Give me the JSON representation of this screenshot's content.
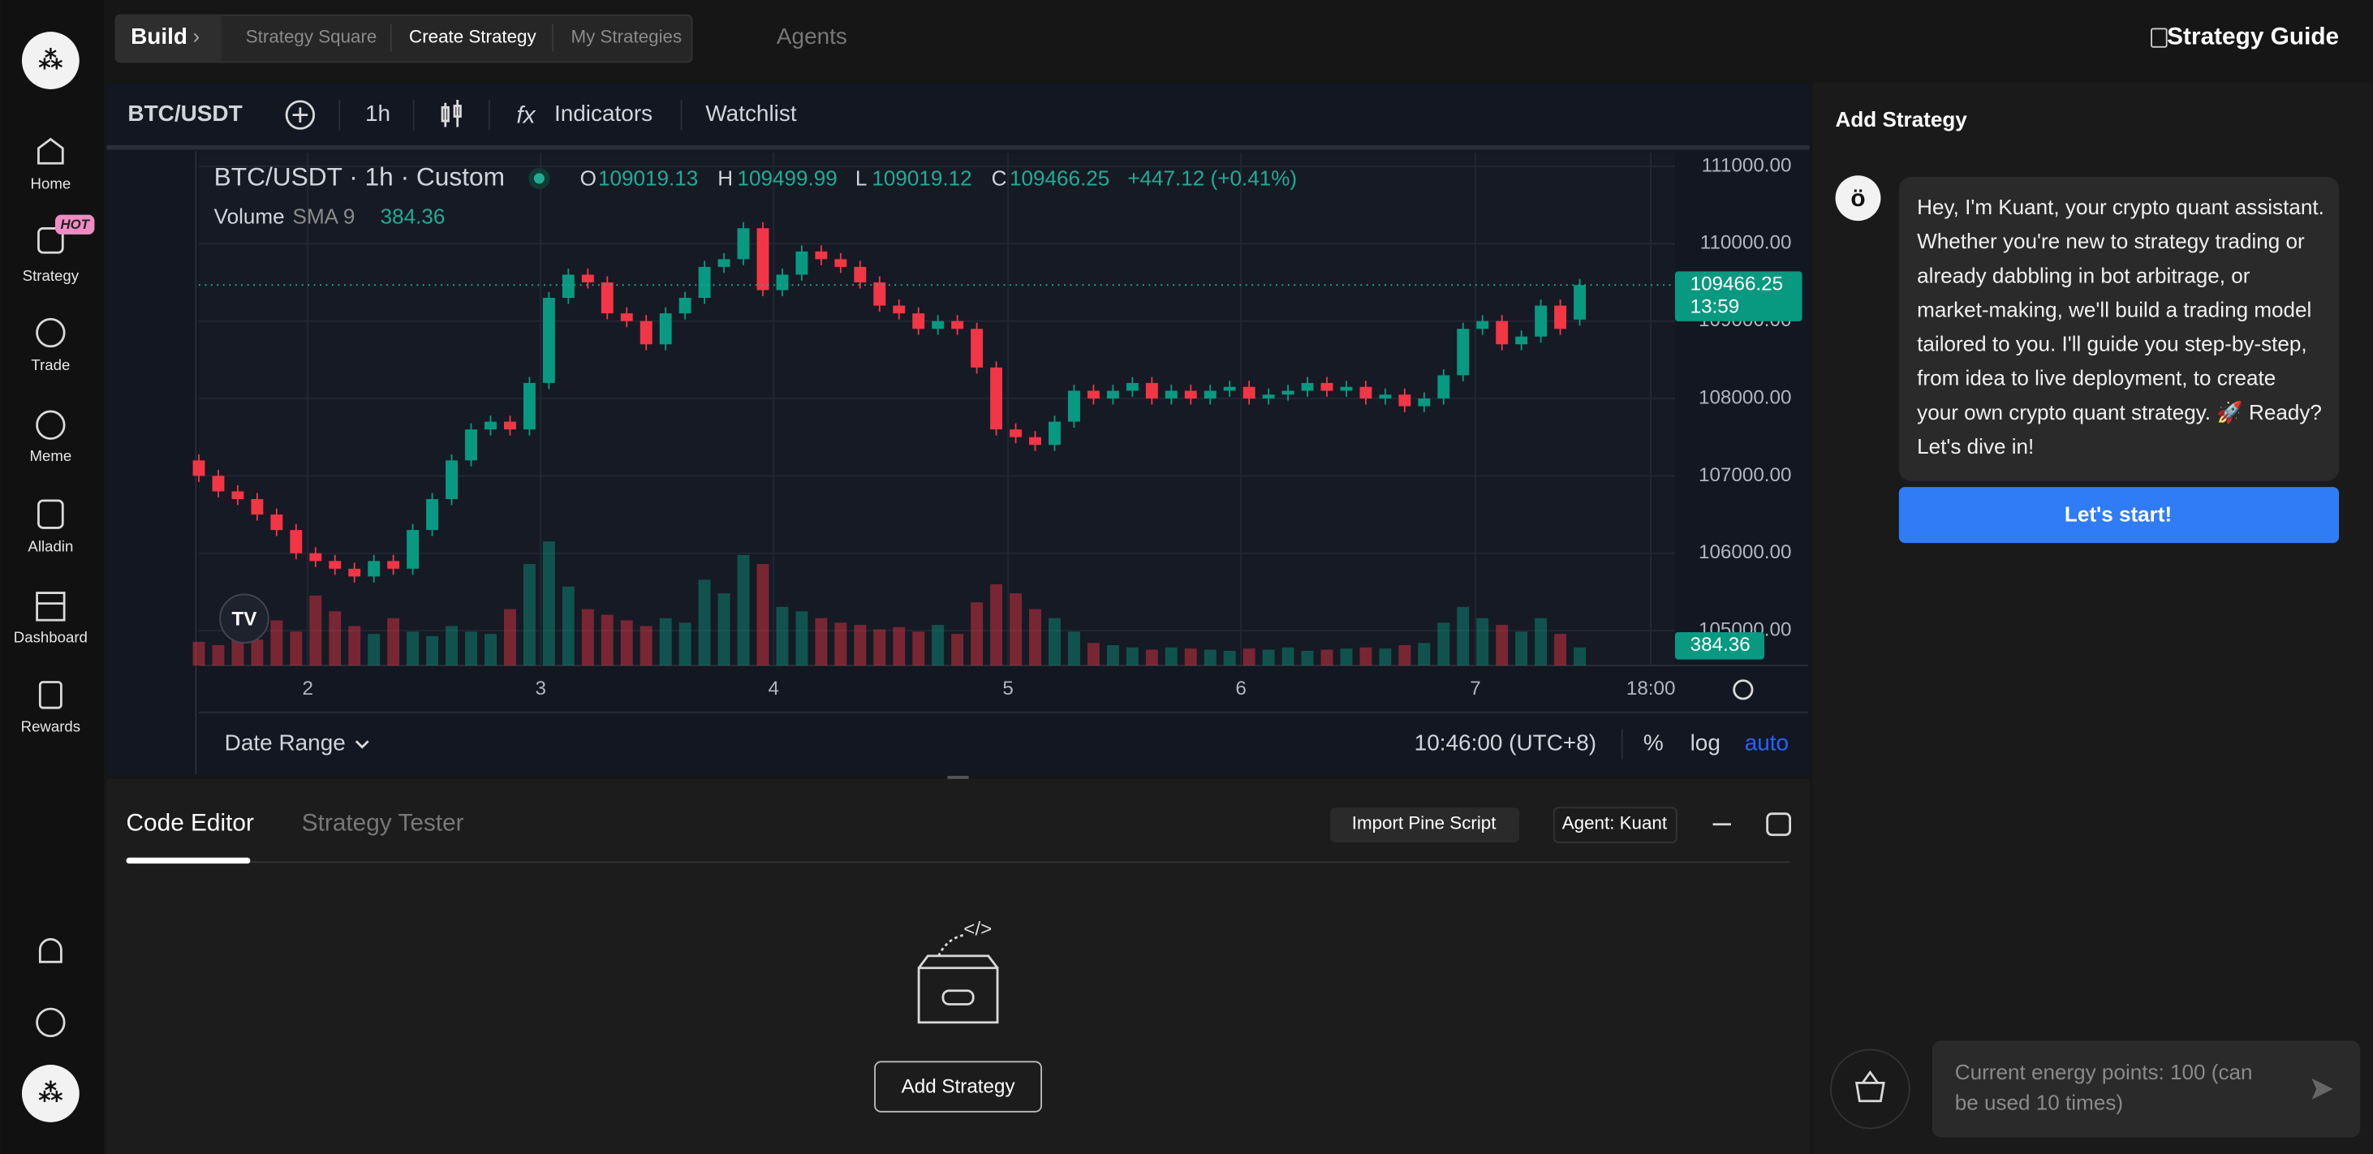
{
  "sidebar": {
    "nav": [
      "Home",
      "Strategy",
      "Trade",
      "Meme",
      "Alladin",
      "Dashboard",
      "Rewards"
    ],
    "badge": "HOT"
  },
  "topbar": {
    "build": "Build",
    "tabs": [
      "Strategy Square",
      "Create Strategy",
      "My Strategies"
    ],
    "agents": "Agents",
    "guide": "Strategy Guide"
  },
  "toolbar": {
    "symbol": "BTC/USDT",
    "interval": "1h",
    "indicators": "Indicators",
    "watchlist": "Watchlist"
  },
  "chart_data": {
    "type": "candlestick",
    "title": "BTC/USDT · 1h · Custom",
    "ohlc_labels": [
      "O",
      "H",
      "L",
      "C"
    ],
    "ohlc_values": [
      109019.13,
      109499.99,
      109019.12,
      109466.25
    ],
    "change": "+447.12 (+0.41%)",
    "volume_label": "Volume",
    "volume_indicator": "SMA 9",
    "volume_sma": 384.36,
    "last_price": 109466.25,
    "countdown": "13:59",
    "candles": [
      [
        107200,
        107000
      ],
      [
        107000,
        106800
      ],
      [
        106800,
        106700
      ],
      [
        106700,
        106500
      ],
      [
        106500,
        106300
      ],
      [
        106300,
        106000
      ],
      [
        106000,
        105900
      ],
      [
        105900,
        105800
      ],
      [
        105800,
        105700
      ],
      [
        105700,
        105900
      ],
      [
        105900,
        105800
      ],
      [
        105800,
        106300
      ],
      [
        106300,
        106700
      ],
      [
        106700,
        107200
      ],
      [
        107200,
        107600
      ],
      [
        107600,
        107700
      ],
      [
        107700,
        107600
      ],
      [
        107600,
        108200
      ],
      [
        108200,
        109300
      ],
      [
        109300,
        109600
      ],
      [
        109600,
        109500
      ],
      [
        109500,
        109100
      ],
      [
        109100,
        109000
      ],
      [
        109000,
        108700
      ],
      [
        108700,
        109100
      ],
      [
        109100,
        109300
      ],
      [
        109300,
        109700
      ],
      [
        109700,
        109800
      ],
      [
        109800,
        110200
      ],
      [
        110200,
        109400
      ],
      [
        109400,
        109600
      ],
      [
        109600,
        109900
      ],
      [
        109900,
        109800
      ],
      [
        109800,
        109700
      ],
      [
        109700,
        109500
      ],
      [
        109500,
        109200
      ],
      [
        109200,
        109100
      ],
      [
        109100,
        108900
      ],
      [
        108900,
        109000
      ],
      [
        109000,
        108900
      ],
      [
        108900,
        108400
      ],
      [
        108400,
        107600
      ],
      [
        107600,
        107500
      ],
      [
        107500,
        107400
      ],
      [
        107400,
        107700
      ],
      [
        107700,
        108100
      ],
      [
        108100,
        108000
      ],
      [
        108000,
        108100
      ],
      [
        108100,
        108200
      ],
      [
        108200,
        108000
      ],
      [
        108000,
        108100
      ],
      [
        108100,
        108000
      ],
      [
        108000,
        108100
      ],
      [
        108100,
        108150
      ],
      [
        108150,
        108000
      ],
      [
        108000,
        108050
      ],
      [
        108050,
        108100
      ],
      [
        108100,
        108200
      ],
      [
        108200,
        108100
      ],
      [
        108100,
        108150
      ],
      [
        108150,
        108000
      ],
      [
        108000,
        108050
      ],
      [
        108050,
        107900
      ],
      [
        107900,
        108000
      ],
      [
        108000,
        108300
      ],
      [
        108300,
        108900
      ],
      [
        108900,
        109000
      ],
      [
        109000,
        108700
      ],
      [
        108700,
        108800
      ],
      [
        108800,
        109200
      ],
      [
        109200,
        108900
      ],
      [
        109019.13,
        109466.25
      ]
    ],
    "volumes": [
      210,
      180,
      260,
      230,
      400,
      300,
      620,
      480,
      350,
      280,
      420,
      300,
      260,
      350,
      300,
      280,
      500,
      900,
      1100,
      700,
      500,
      450,
      400,
      350,
      420,
      380,
      760,
      640,
      980,
      900,
      520,
      480,
      420,
      380,
      360,
      320,
      340,
      300,
      360,
      280,
      560,
      720,
      640,
      500,
      420,
      300,
      200,
      180,
      160,
      140,
      160,
      150,
      140,
      130,
      150,
      140,
      160,
      130,
      140,
      150,
      160,
      150,
      180,
      200,
      380,
      520,
      420,
      360,
      300,
      420,
      280,
      160
    ],
    "ylim": [
      104550,
      111175
    ],
    "yticks": [
      {
        "value": 105000,
        "label": "105000.00"
      },
      {
        "value": 106000,
        "label": "106000.00"
      },
      {
        "value": 107000,
        "label": "107000.00"
      },
      {
        "value": 108000,
        "label": "108000.00"
      },
      {
        "value": 109000,
        "label": "109000.00"
      },
      {
        "value": 110000,
        "label": "110000.00"
      },
      {
        "value": 111000,
        "label": "111000.00"
      }
    ],
    "x_labels": [
      "2",
      "3",
      "4",
      "5",
      "6",
      "7",
      "18:00"
    ],
    "colors": {
      "up": "#089981",
      "down": "#f23645"
    },
    "grid": true
  },
  "chart_footer": {
    "date_range": "Date Range",
    "time": "10:46:00 (UTC+8)",
    "percent": "%",
    "log": "log",
    "auto": "auto"
  },
  "editor": {
    "tabs": [
      "Code Editor",
      "Strategy Tester"
    ],
    "import": "Import Pine Script",
    "agent": "Agent: Kuant",
    "add": "Add Strategy"
  },
  "assistant": {
    "title": "Add Strategy",
    "message_lines": [
      "Hey, I'm Kuant, your crypto quant assistant.",
      "Whether you're new to strategy trading or",
      "already dabbling in bot arbitrage, or",
      "market-making, we'll build a trading model",
      "tailored to you. I'll guide you step-by-step,",
      "from idea to live deployment, to create",
      "your own crypto quant strategy. 🚀 Ready?",
      "Let's dive in!"
    ],
    "start": "Let's start!",
    "input_lines": [
      "Current energy points: 100 (can",
      "be used 10 times)"
    ]
  }
}
